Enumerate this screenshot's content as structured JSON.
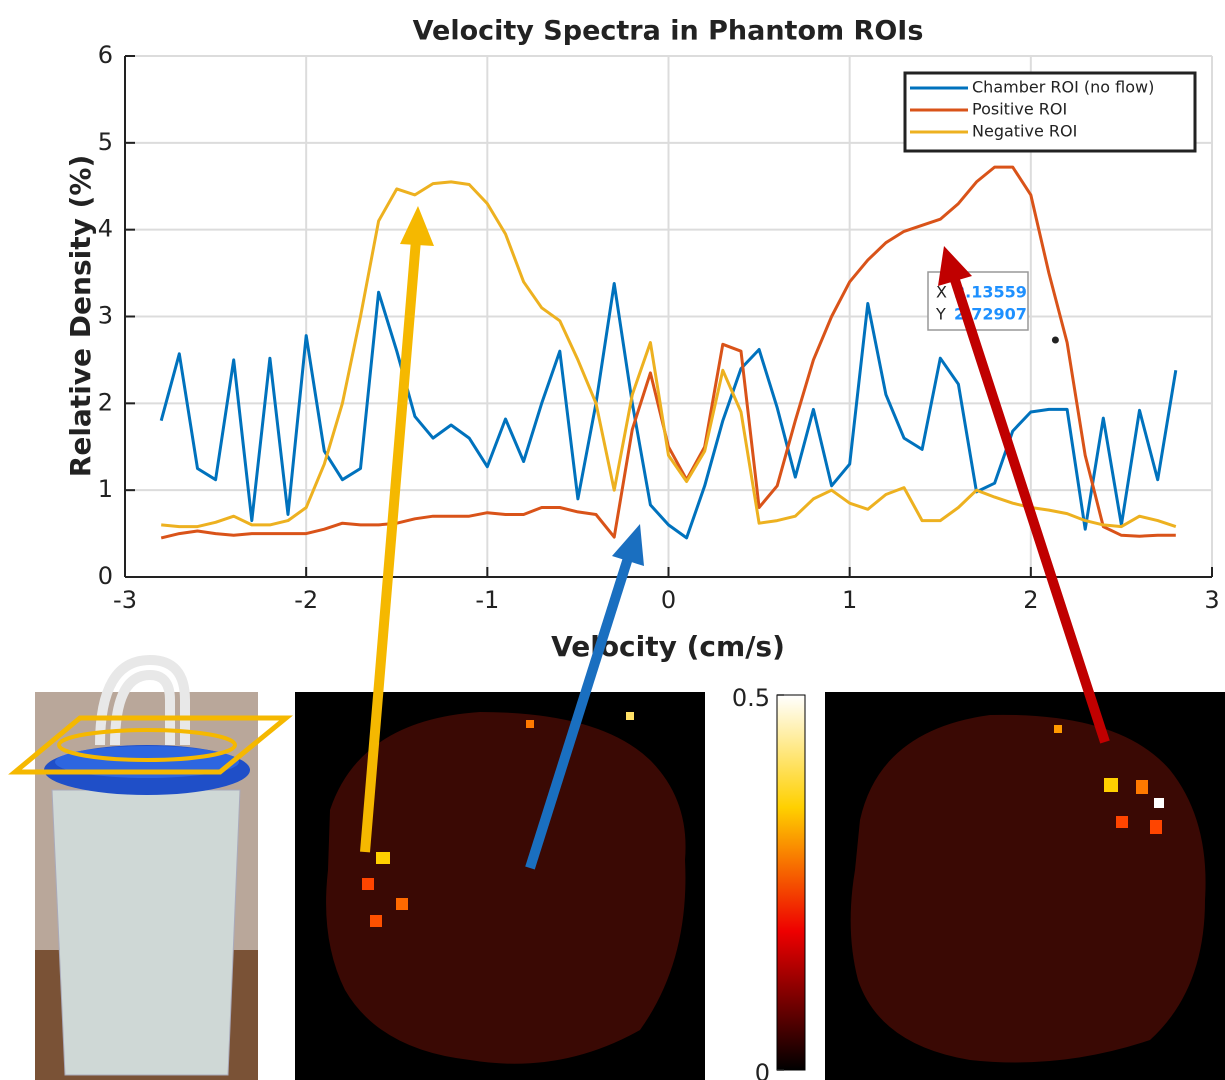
{
  "chart_data": {
    "type": "line",
    "title": "Velocity Spectra in Phantom ROIs",
    "x_label": "Velocity (cm/s)",
    "y_label": "Relative Density (%)",
    "x": [
      -2.8,
      -2.7,
      -2.6,
      -2.5,
      -2.4,
      -2.3,
      -2.2,
      -2.1,
      -2.0,
      -1.9,
      -1.8,
      -1.7,
      -1.6,
      -1.5,
      -1.4,
      -1.3,
      -1.2,
      -1.1,
      -1.0,
      -0.9,
      -0.8,
      -0.7,
      -0.6,
      -0.5,
      -0.4,
      -0.3,
      -0.2,
      -0.1,
      0.0,
      0.1,
      0.2,
      0.3,
      0.4,
      0.5,
      0.6,
      0.7,
      0.8,
      0.9,
      1.0,
      1.1,
      1.2,
      1.3,
      1.4,
      1.5,
      1.6,
      1.7,
      1.8,
      1.9,
      2.0,
      2.1,
      2.2,
      2.3,
      2.4,
      2.5,
      2.6,
      2.7,
      2.8
    ],
    "series": [
      {
        "name": "Chamber ROI (no flow)",
        "color": "#0072bd",
        "values": [
          1.8,
          2.57,
          1.25,
          1.12,
          2.5,
          0.65,
          2.52,
          0.72,
          2.78,
          1.45,
          1.12,
          1.25,
          3.28,
          2.6,
          1.85,
          1.6,
          1.75,
          1.6,
          1.27,
          1.82,
          1.33,
          2.0,
          2.6,
          0.9,
          2.0,
          3.38,
          2.0,
          0.83,
          0.6,
          0.45,
          1.05,
          1.8,
          2.4,
          2.62,
          1.95,
          1.15,
          1.93,
          1.05,
          1.3,
          3.15,
          2.1,
          1.6,
          1.47,
          2.52,
          2.22,
          0.98,
          1.08,
          1.68,
          1.9,
          1.93,
          1.93,
          0.55,
          1.83,
          0.6,
          1.92,
          1.12,
          2.38
        ]
      },
      {
        "name": "Positive ROI",
        "color": "#d95319",
        "values": [
          0.45,
          0.5,
          0.53,
          0.5,
          0.48,
          0.5,
          0.5,
          0.5,
          0.5,
          0.55,
          0.62,
          0.6,
          0.6,
          0.62,
          0.67,
          0.7,
          0.7,
          0.7,
          0.74,
          0.72,
          0.72,
          0.8,
          0.8,
          0.75,
          0.72,
          0.46,
          1.7,
          2.35,
          1.5,
          1.12,
          1.5,
          2.68,
          2.6,
          0.8,
          1.05,
          1.8,
          2.5,
          3.0,
          3.4,
          3.65,
          3.85,
          3.98,
          4.05,
          4.12,
          4.3,
          4.55,
          4.72,
          4.72,
          4.4,
          3.5,
          2.7,
          1.4,
          0.58,
          0.48,
          0.47,
          0.48,
          0.48
        ]
      },
      {
        "name": "Negative ROI",
        "color": "#edb120",
        "values": [
          0.6,
          0.58,
          0.58,
          0.63,
          0.7,
          0.6,
          0.6,
          0.65,
          0.8,
          1.3,
          2.0,
          3.0,
          4.1,
          4.47,
          4.4,
          4.53,
          4.55,
          4.52,
          4.3,
          3.95,
          3.4,
          3.1,
          2.95,
          2.5,
          2.0,
          1.0,
          2.1,
          2.7,
          1.4,
          1.1,
          1.45,
          2.38,
          1.9,
          0.62,
          0.65,
          0.7,
          0.9,
          1.0,
          0.85,
          0.78,
          0.95,
          1.03,
          0.65,
          0.65,
          0.8,
          1.0,
          0.92,
          0.85,
          0.8,
          0.77,
          0.73,
          0.65,
          0.6,
          0.58,
          0.7,
          0.65,
          0.58
        ]
      }
    ],
    "xlim": [
      -3,
      3
    ],
    "xticks": [
      -3,
      -2,
      -1,
      0,
      1,
      2,
      3
    ],
    "ylim": [
      0,
      6
    ],
    "yticks": [
      0,
      1,
      2,
      3,
      4,
      5,
      6
    ],
    "grid": true,
    "legend": "northeast",
    "datatip": {
      "x_label": "X",
      "x": 2.13559,
      "y_label": "Y",
      "y": 2.72907
    }
  },
  "colorbar": {
    "clim": [
      0,
      0.5
    ],
    "ticks": [
      0,
      0.5
    ]
  }
}
